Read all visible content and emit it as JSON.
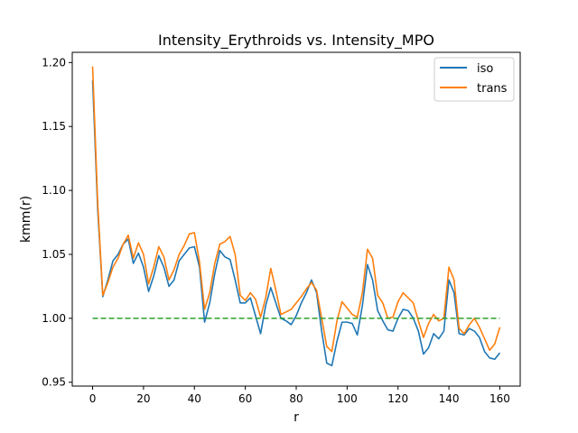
{
  "chart_data": {
    "type": "line",
    "title": "Intensity_Erythroids vs. Intensity_MPO",
    "xlabel": "r",
    "ylabel": "kmm(r)",
    "xlim": [
      -8,
      168
    ],
    "ylim": [
      0.947,
      1.208
    ],
    "xticks": [
      0,
      20,
      40,
      60,
      80,
      100,
      120,
      140,
      160
    ],
    "yticks": [
      0.95,
      1.0,
      1.05,
      1.1,
      1.15,
      1.2
    ],
    "ytick_labels": [
      "0.95",
      "1.00",
      "1.05",
      "1.10",
      "1.15",
      "1.20"
    ],
    "grid": false,
    "legend_position": "top-right",
    "x": [
      0,
      2,
      4,
      6,
      8,
      10,
      12,
      14,
      16,
      18,
      20,
      22,
      24,
      26,
      28,
      30,
      32,
      34,
      36,
      38,
      40,
      42,
      44,
      46,
      48,
      50,
      52,
      54,
      56,
      58,
      60,
      62,
      64,
      66,
      68,
      70,
      72,
      74,
      76,
      78,
      80,
      82,
      84,
      86,
      88,
      90,
      92,
      94,
      96,
      98,
      100,
      102,
      104,
      106,
      108,
      110,
      112,
      114,
      116,
      118,
      120,
      122,
      124,
      126,
      128,
      130,
      132,
      134,
      136,
      138,
      140,
      142,
      144,
      146,
      148,
      150,
      152,
      154,
      156,
      158,
      160
    ],
    "series": [
      {
        "name": "iso",
        "color": "#1f77b4",
        "style": "solid",
        "values": [
          1.186,
          1.085,
          1.017,
          1.03,
          1.045,
          1.05,
          1.058,
          1.062,
          1.043,
          1.051,
          1.04,
          1.021,
          1.033,
          1.049,
          1.04,
          1.025,
          1.03,
          1.045,
          1.05,
          1.055,
          1.056,
          1.04,
          0.997,
          1.012,
          1.035,
          1.053,
          1.048,
          1.046,
          1.03,
          1.012,
          1.012,
          1.016,
          1.002,
          0.988,
          1.01,
          1.024,
          1.012,
          1.0,
          0.998,
          0.995,
          1.002,
          1.012,
          1.02,
          1.03,
          1.02,
          0.99,
          0.965,
          0.963,
          0.982,
          0.997,
          0.997,
          0.996,
          0.987,
          1.01,
          1.042,
          1.03,
          1.006,
          0.998,
          0.991,
          0.99,
          1.0,
          1.007,
          1.006,
          1.0,
          0.99,
          0.972,
          0.977,
          0.988,
          0.984,
          0.99,
          1.03,
          1.02,
          0.988,
          0.987,
          0.992,
          0.99,
          0.985,
          0.974,
          0.969,
          0.968,
          0.973
        ]
      },
      {
        "name": "trans",
        "color": "#ff7f0e",
        "style": "solid",
        "values": [
          1.197,
          1.09,
          1.018,
          1.028,
          1.04,
          1.047,
          1.058,
          1.065,
          1.047,
          1.059,
          1.05,
          1.027,
          1.04,
          1.056,
          1.048,
          1.03,
          1.038,
          1.05,
          1.057,
          1.066,
          1.067,
          1.044,
          1.007,
          1.02,
          1.043,
          1.058,
          1.06,
          1.064,
          1.05,
          1.018,
          1.014,
          1.02,
          1.015,
          1.001,
          1.016,
          1.039,
          1.022,
          1.003,
          1.005,
          1.007,
          1.012,
          1.017,
          1.023,
          1.028,
          1.022,
          1.0,
          0.978,
          0.974,
          0.998,
          1.013,
          1.008,
          1.003,
          1.001,
          1.02,
          1.054,
          1.047,
          1.018,
          1.012,
          1.0,
          1.001,
          1.013,
          1.02,
          1.016,
          1.012,
          0.998,
          0.985,
          0.996,
          1.003,
          0.998,
          1.0,
          1.04,
          1.03,
          0.992,
          0.988,
          0.995,
          1.0,
          0.993,
          0.984,
          0.975,
          0.98,
          0.993
        ]
      },
      {
        "name": "",
        "color": "#2ca02c",
        "style": "dashed",
        "values": [
          1.0,
          1.0,
          1.0,
          1.0,
          1.0,
          1.0,
          1.0,
          1.0,
          1.0,
          1.0,
          1.0,
          1.0,
          1.0,
          1.0,
          1.0,
          1.0,
          1.0,
          1.0,
          1.0,
          1.0,
          1.0,
          1.0,
          1.0,
          1.0,
          1.0,
          1.0,
          1.0,
          1.0,
          1.0,
          1.0,
          1.0,
          1.0,
          1.0,
          1.0,
          1.0,
          1.0,
          1.0,
          1.0,
          1.0,
          1.0,
          1.0,
          1.0,
          1.0,
          1.0,
          1.0,
          1.0,
          1.0,
          1.0,
          1.0,
          1.0,
          1.0,
          1.0,
          1.0,
          1.0,
          1.0,
          1.0,
          1.0,
          1.0,
          1.0,
          1.0,
          1.0,
          1.0,
          1.0,
          1.0,
          1.0,
          1.0,
          1.0,
          1.0,
          1.0,
          1.0,
          1.0,
          1.0,
          1.0,
          1.0,
          1.0,
          1.0,
          1.0,
          1.0,
          1.0,
          1.0,
          1.0
        ]
      }
    ],
    "legend": [
      {
        "label": "iso",
        "color": "#1f77b4"
      },
      {
        "label": "trans",
        "color": "#ff7f0e"
      }
    ]
  }
}
